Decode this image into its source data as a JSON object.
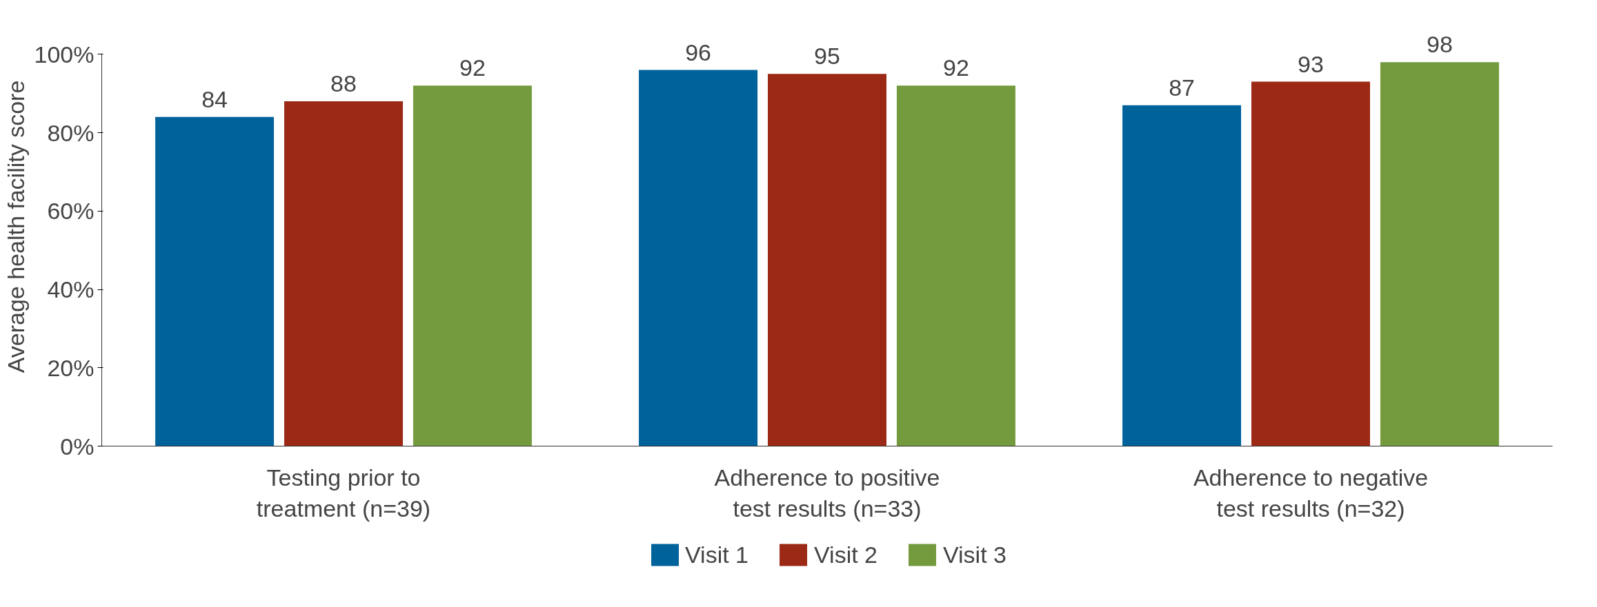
{
  "chart_data": {
    "type": "bar",
    "ylabel": "Average health facility score",
    "categories": [
      "Testing prior to\ntreatment (n=39)",
      "Adherence to positive\ntest results (n=33)",
      "Adherence to negative\ntest results (n=32)"
    ],
    "series": [
      {
        "name": "Visit 1",
        "color": "#00629b",
        "values": [
          84,
          96,
          87
        ]
      },
      {
        "name": "Visit 2",
        "color": "#9b2915",
        "values": [
          88,
          95,
          93
        ]
      },
      {
        "name": "Visit 3",
        "color": "#739b3d",
        "values": [
          92,
          92,
          98
        ]
      }
    ],
    "ylim": [
      0,
      100
    ],
    "yticks": [
      {
        "value": 0,
        "label": "0%"
      },
      {
        "value": 20,
        "label": "20%"
      },
      {
        "value": 40,
        "label": "40%"
      },
      {
        "value": 60,
        "label": "60%"
      },
      {
        "value": 80,
        "label": "80%"
      },
      {
        "value": 100,
        "label": "100%"
      }
    ],
    "data_labels": true,
    "grid": false,
    "legend": "bottom"
  }
}
